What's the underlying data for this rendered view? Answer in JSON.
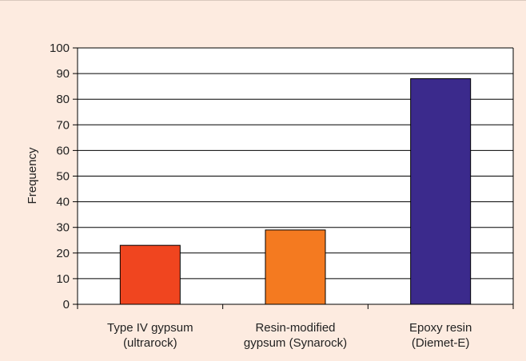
{
  "chart_data": {
    "type": "bar",
    "title": "",
    "xlabel": "",
    "ylabel": "Frequency",
    "ylim": [
      0,
      100
    ],
    "yticks": [
      0,
      10,
      20,
      30,
      40,
      50,
      60,
      70,
      80,
      90,
      100
    ],
    "grid": true,
    "categories": [
      [
        "Type IV gypsum",
        "(ultrarock)"
      ],
      [
        "Resin-modified",
        "gypsum (Synarock)"
      ],
      [
        "Epoxy resin",
        "(Diemet-E)"
      ]
    ],
    "values": [
      23,
      29,
      88
    ],
    "colors": [
      "#f0451f",
      "#f47a20",
      "#3b2a8c"
    ]
  }
}
